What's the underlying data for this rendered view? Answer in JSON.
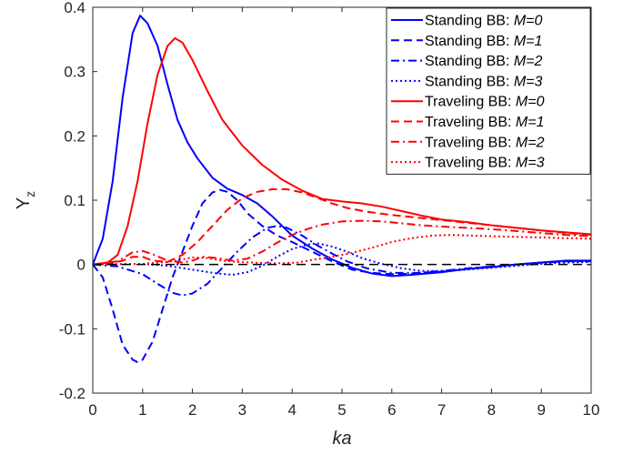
{
  "chart_data": {
    "type": "line",
    "xlabel": "ka",
    "ylabel": {
      "main": "Y",
      "sub": "z"
    },
    "xlim": [
      0,
      10
    ],
    "ylim": [
      -0.2,
      0.4
    ],
    "xticks": [
      0,
      1,
      2,
      3,
      4,
      5,
      6,
      7,
      8,
      9,
      10
    ],
    "xtick_labels": [
      "0",
      "1",
      "2",
      "3",
      "4",
      "5",
      "6",
      "7",
      "8",
      "9",
      "10"
    ],
    "yticks": [
      -0.2,
      -0.1,
      0,
      0.1,
      0.2,
      0.3,
      0.4
    ],
    "ytick_labels": [
      "-0.2",
      "-0.1",
      "0",
      "0.1",
      "0.2",
      "0.3",
      "0.4"
    ],
    "grid": false,
    "legend_position": "top-right",
    "reference_line": {
      "y": 0,
      "style": "dashed",
      "color": "#000000"
    },
    "series": [
      {
        "prefix": "Standing BB: ",
        "suffix": "M=0",
        "color": "#0000ff",
        "dash": "solid",
        "points": [
          [
            0,
            0
          ],
          [
            0.2,
            0.04
          ],
          [
            0.4,
            0.13
          ],
          [
            0.6,
            0.26
          ],
          [
            0.8,
            0.36
          ],
          [
            0.95,
            0.387
          ],
          [
            1.1,
            0.375
          ],
          [
            1.3,
            0.34
          ],
          [
            1.5,
            0.28
          ],
          [
            1.7,
            0.225
          ],
          [
            1.9,
            0.19
          ],
          [
            2.1,
            0.165
          ],
          [
            2.4,
            0.135
          ],
          [
            2.7,
            0.118
          ],
          [
            3.0,
            0.108
          ],
          [
            3.3,
            0.095
          ],
          [
            3.6,
            0.075
          ],
          [
            4.0,
            0.045
          ],
          [
            4.4,
            0.025
          ],
          [
            4.8,
            0.008
          ],
          [
            5.2,
            -0.005
          ],
          [
            5.6,
            -0.014
          ],
          [
            6.0,
            -0.018
          ],
          [
            6.4,
            -0.016
          ],
          [
            7.0,
            -0.012
          ],
          [
            7.5,
            -0.007
          ],
          [
            8.0,
            -0.004
          ],
          [
            8.5,
            0.0
          ],
          [
            9.0,
            0.003
          ],
          [
            9.5,
            0.006
          ],
          [
            10.0,
            0.006
          ]
        ]
      },
      {
        "prefix": "Standing BB: ",
        "suffix": "M=1",
        "color": "#0000ff",
        "dash": "dashed",
        "points": [
          [
            0,
            0
          ],
          [
            0.2,
            -0.02
          ],
          [
            0.4,
            -0.07
          ],
          [
            0.6,
            -0.125
          ],
          [
            0.8,
            -0.148
          ],
          [
            0.9,
            -0.152
          ],
          [
            1.0,
            -0.148
          ],
          [
            1.2,
            -0.12
          ],
          [
            1.4,
            -0.07
          ],
          [
            1.6,
            -0.02
          ],
          [
            1.8,
            0.02
          ],
          [
            2.0,
            0.06
          ],
          [
            2.2,
            0.095
          ],
          [
            2.4,
            0.112
          ],
          [
            2.55,
            0.116
          ],
          [
            2.7,
            0.113
          ],
          [
            2.9,
            0.1
          ],
          [
            3.1,
            0.08
          ],
          [
            3.4,
            0.06
          ],
          [
            3.7,
            0.045
          ],
          [
            4.0,
            0.035
          ],
          [
            4.4,
            0.02
          ],
          [
            4.8,
            0.005
          ],
          [
            5.2,
            -0.008
          ],
          [
            5.6,
            -0.013
          ],
          [
            6.0,
            -0.015
          ],
          [
            6.5,
            -0.014
          ],
          [
            7.0,
            -0.011
          ],
          [
            7.5,
            -0.007
          ],
          [
            8.0,
            -0.003
          ],
          [
            8.5,
            0.0
          ],
          [
            9.0,
            0.003
          ],
          [
            9.5,
            0.005
          ],
          [
            10.0,
            0.006
          ]
        ]
      },
      {
        "prefix": "Standing BB: ",
        "suffix": "M=2",
        "color": "#0000ff",
        "dash": "dashdot",
        "points": [
          [
            0,
            0
          ],
          [
            0.5,
            -0.003
          ],
          [
            1.0,
            -0.015
          ],
          [
            1.3,
            -0.03
          ],
          [
            1.6,
            -0.044
          ],
          [
            1.8,
            -0.048
          ],
          [
            2.0,
            -0.045
          ],
          [
            2.3,
            -0.03
          ],
          [
            2.6,
            -0.005
          ],
          [
            2.9,
            0.02
          ],
          [
            3.2,
            0.042
          ],
          [
            3.5,
            0.057
          ],
          [
            3.7,
            0.06
          ],
          [
            3.9,
            0.057
          ],
          [
            4.2,
            0.045
          ],
          [
            4.5,
            0.03
          ],
          [
            4.8,
            0.017
          ],
          [
            5.1,
            0.005
          ],
          [
            5.5,
            -0.006
          ],
          [
            6.0,
            -0.013
          ],
          [
            6.5,
            -0.013
          ],
          [
            7.0,
            -0.01
          ],
          [
            7.5,
            -0.006
          ],
          [
            8.0,
            -0.003
          ],
          [
            8.5,
            0.0
          ],
          [
            9.0,
            0.003
          ],
          [
            9.5,
            0.005
          ],
          [
            10.0,
            0.005
          ]
        ]
      },
      {
        "prefix": "Standing BB: ",
        "suffix": "M=3",
        "color": "#0000ff",
        "dash": "dotted",
        "points": [
          [
            0,
            0
          ],
          [
            1.0,
            0.001
          ],
          [
            1.5,
            -0.002
          ],
          [
            2.0,
            -0.008
          ],
          [
            2.5,
            -0.014
          ],
          [
            2.8,
            -0.016
          ],
          [
            3.1,
            -0.012
          ],
          [
            3.4,
            -0.002
          ],
          [
            3.7,
            0.012
          ],
          [
            4.0,
            0.024
          ],
          [
            4.3,
            0.031
          ],
          [
            4.5,
            0.033
          ],
          [
            4.8,
            0.028
          ],
          [
            5.1,
            0.02
          ],
          [
            5.4,
            0.01
          ],
          [
            5.8,
            0.001
          ],
          [
            6.2,
            -0.006
          ],
          [
            6.6,
            -0.01
          ],
          [
            7.0,
            -0.01
          ],
          [
            7.5,
            -0.008
          ],
          [
            8.0,
            -0.005
          ],
          [
            8.5,
            -0.002
          ],
          [
            9.0,
            0.001
          ],
          [
            9.5,
            0.003
          ],
          [
            10.0,
            0.004
          ]
        ]
      },
      {
        "prefix": "Traveling BB: ",
        "suffix": "M=0",
        "color": "#ff0000",
        "dash": "solid",
        "points": [
          [
            0,
            0
          ],
          [
            0.3,
            0.003
          ],
          [
            0.5,
            0.015
          ],
          [
            0.7,
            0.06
          ],
          [
            0.9,
            0.13
          ],
          [
            1.1,
            0.22
          ],
          [
            1.3,
            0.295
          ],
          [
            1.5,
            0.34
          ],
          [
            1.65,
            0.352
          ],
          [
            1.8,
            0.345
          ],
          [
            2.0,
            0.318
          ],
          [
            2.3,
            0.27
          ],
          [
            2.6,
            0.225
          ],
          [
            3.0,
            0.185
          ],
          [
            3.4,
            0.155
          ],
          [
            3.8,
            0.132
          ],
          [
            4.2,
            0.115
          ],
          [
            4.6,
            0.102
          ],
          [
            5.0,
            0.098
          ],
          [
            5.4,
            0.095
          ],
          [
            5.8,
            0.09
          ],
          [
            6.2,
            0.083
          ],
          [
            6.6,
            0.076
          ],
          [
            7.0,
            0.07
          ],
          [
            7.5,
            0.066
          ],
          [
            8.0,
            0.061
          ],
          [
            8.5,
            0.057
          ],
          [
            9.0,
            0.053
          ],
          [
            9.5,
            0.05
          ],
          [
            10.0,
            0.047
          ]
        ]
      },
      {
        "prefix": "Traveling BB: ",
        "suffix": "M=1",
        "color": "#ff0000",
        "dash": "dashed",
        "points": [
          [
            0,
            0
          ],
          [
            0.3,
            0.001
          ],
          [
            0.6,
            0.006
          ],
          [
            0.8,
            0.012
          ],
          [
            1.0,
            0.012
          ],
          [
            1.2,
            0.006
          ],
          [
            1.5,
            0.004
          ],
          [
            1.8,
            0.015
          ],
          [
            2.1,
            0.035
          ],
          [
            2.4,
            0.06
          ],
          [
            2.7,
            0.085
          ],
          [
            3.0,
            0.103
          ],
          [
            3.3,
            0.113
          ],
          [
            3.6,
            0.117
          ],
          [
            3.9,
            0.117
          ],
          [
            4.2,
            0.112
          ],
          [
            4.5,
            0.104
          ],
          [
            4.8,
            0.095
          ],
          [
            5.1,
            0.088
          ],
          [
            5.5,
            0.082
          ],
          [
            6.0,
            0.077
          ],
          [
            6.5,
            0.073
          ],
          [
            7.0,
            0.069
          ],
          [
            7.5,
            0.065
          ],
          [
            8.0,
            0.061
          ],
          [
            8.5,
            0.057
          ],
          [
            9.0,
            0.053
          ],
          [
            9.5,
            0.049
          ],
          [
            10.0,
            0.046
          ]
        ]
      },
      {
        "prefix": "Traveling BB: ",
        "suffix": "M=2",
        "color": "#ff0000",
        "dash": "dashdot",
        "points": [
          [
            0,
            0
          ],
          [
            0.5,
            0.005
          ],
          [
            0.8,
            0.019
          ],
          [
            1.0,
            0.021
          ],
          [
            1.2,
            0.016
          ],
          [
            1.5,
            0.006
          ],
          [
            1.8,
            0.003
          ],
          [
            2.0,
            0.006
          ],
          [
            2.2,
            0.012
          ],
          [
            2.5,
            0.01
          ],
          [
            2.8,
            0.006
          ],
          [
            3.1,
            0.009
          ],
          [
            3.4,
            0.02
          ],
          [
            3.7,
            0.034
          ],
          [
            4.0,
            0.046
          ],
          [
            4.3,
            0.055
          ],
          [
            4.6,
            0.062
          ],
          [
            5.0,
            0.067
          ],
          [
            5.4,
            0.068
          ],
          [
            5.8,
            0.067
          ],
          [
            6.2,
            0.064
          ],
          [
            6.6,
            0.061
          ],
          [
            7.0,
            0.059
          ],
          [
            7.5,
            0.057
          ],
          [
            8.0,
            0.055
          ],
          [
            8.5,
            0.052
          ],
          [
            9.0,
            0.049
          ],
          [
            9.5,
            0.046
          ],
          [
            10.0,
            0.044
          ]
        ]
      },
      {
        "prefix": "Traveling BB: ",
        "suffix": "M=3",
        "color": "#ff0000",
        "dash": "dotted",
        "points": [
          [
            0,
            0
          ],
          [
            1.0,
            0.001
          ],
          [
            1.5,
            0.004
          ],
          [
            1.8,
            0.008
          ],
          [
            2.0,
            0.011
          ],
          [
            2.3,
            0.01
          ],
          [
            2.6,
            0.006
          ],
          [
            2.9,
            0.004
          ],
          [
            3.2,
            0.003
          ],
          [
            3.5,
            0.002
          ],
          [
            3.8,
            0.002
          ],
          [
            4.1,
            0.003
          ],
          [
            4.4,
            0.007
          ],
          [
            4.8,
            0.012
          ],
          [
            5.2,
            0.018
          ],
          [
            5.6,
            0.026
          ],
          [
            6.0,
            0.035
          ],
          [
            6.4,
            0.041
          ],
          [
            6.8,
            0.045
          ],
          [
            7.2,
            0.046
          ],
          [
            7.6,
            0.045
          ],
          [
            8.0,
            0.044
          ],
          [
            8.5,
            0.043
          ],
          [
            9.0,
            0.042
          ],
          [
            9.5,
            0.041
          ],
          [
            10.0,
            0.04
          ]
        ]
      }
    ]
  }
}
